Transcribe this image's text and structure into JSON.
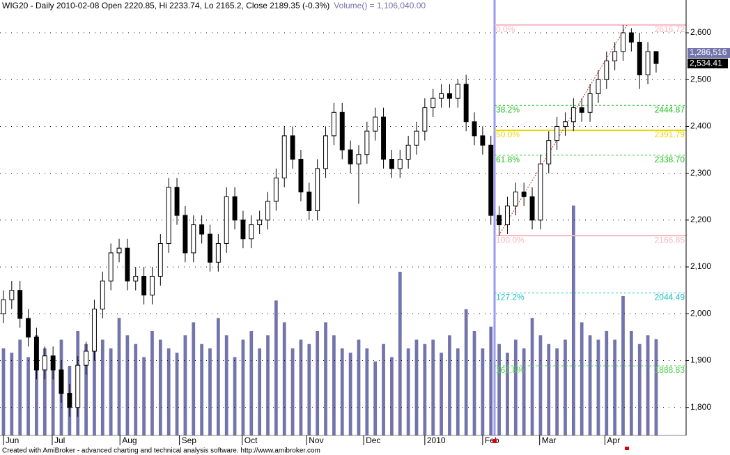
{
  "chart_data": {
    "type": "candlestick",
    "title": "WIG20 - Daily 2010-02-08 Open 2220.85, Hi 2233.74, Lo 2165.2, Close 2189.35 (-0.3%)",
    "volume_title": "Volume() = 1,106,040.00",
    "footer": "Created with AmiBroker - advanced charting and technical analysis software. http://www.amibroker.com",
    "x": [
      0,
      1,
      2,
      3,
      4,
      5,
      6,
      7,
      8,
      9,
      10,
      11,
      12,
      13,
      14,
      15,
      16,
      17,
      18,
      19,
      20,
      21,
      22,
      23,
      24,
      25,
      26,
      27,
      28,
      29,
      30,
      31,
      32,
      33,
      34,
      35,
      36,
      37,
      38,
      39,
      40,
      41,
      42,
      43,
      44,
      45,
      46,
      47,
      48,
      49,
      50,
      51,
      52,
      53,
      54,
      55,
      56,
      57,
      58,
      59,
      60,
      61,
      62,
      63,
      64,
      65,
      66,
      67,
      68,
      69,
      70,
      71,
      72,
      73,
      74,
      75,
      76,
      77,
      78,
      79
    ],
    "open": [
      2000,
      2030,
      2050,
      1990,
      1950,
      1880,
      1910,
      1880,
      1830,
      1800,
      1890,
      1920,
      2010,
      2070,
      2130,
      2140,
      2070,
      2080,
      2040,
      2080,
      2150,
      2270,
      2210,
      2130,
      2190,
      2170,
      2110,
      2150,
      2250,
      2200,
      2160,
      2190,
      2200,
      2240,
      2290,
      2380,
      2330,
      2260,
      2220,
      2310,
      2380,
      2430,
      2350,
      2320,
      2340,
      2390,
      2420,
      2330,
      2310,
      2330,
      2360,
      2390,
      2440,
      2460,
      2470,
      2460,
      2490,
      2410,
      2380,
      2360,
      2210,
      2190,
      2230,
      2260,
      2250,
      2200,
      2320,
      2370,
      2400,
      2410,
      2440,
      2430,
      2470,
      2500,
      2540,
      2560,
      2600,
      2580,
      2510,
      2560
    ],
    "high": [
      2050,
      2070,
      2070,
      2010,
      1970,
      1930,
      1930,
      1900,
      1850,
      1910,
      1940,
      2030,
      2090,
      2150,
      2160,
      2160,
      2100,
      2100,
      2100,
      2170,
      2290,
      2290,
      2230,
      2210,
      2210,
      2190,
      2170,
      2270,
      2270,
      2220,
      2210,
      2220,
      2260,
      2310,
      2400,
      2400,
      2350,
      2280,
      2330,
      2400,
      2450,
      2450,
      2370,
      2360,
      2410,
      2440,
      2440,
      2350,
      2350,
      2380,
      2410,
      2460,
      2480,
      2490,
      2490,
      2500,
      2510,
      2430,
      2400,
      2380,
      2230,
      2250,
      2280,
      2280,
      2270,
      2340,
      2390,
      2420,
      2430,
      2460,
      2460,
      2490,
      2520,
      2560,
      2580,
      2616.72,
      2610,
      2600,
      2580,
      2555
    ],
    "low": [
      1980,
      2010,
      1970,
      1930,
      1860,
      1860,
      1860,
      1810,
      1780,
      1780,
      1870,
      1900,
      1990,
      2050,
      2110,
      2050,
      2050,
      2020,
      2020,
      2060,
      2130,
      2190,
      2110,
      2110,
      2150,
      2090,
      2090,
      2130,
      2180,
      2140,
      2140,
      2170,
      2180,
      2220,
      2270,
      2310,
      2240,
      2200,
      2200,
      2290,
      2360,
      2330,
      2300,
      2235,
      2320,
      2370,
      2310,
      2290,
      2290,
      2310,
      2340,
      2370,
      2420,
      2440,
      2440,
      2440,
      2390,
      2360,
      2340,
      2190,
      2166.85,
      2170,
      2210,
      2230,
      2180,
      2180,
      2300,
      2350,
      2380,
      2390,
      2410,
      2410,
      2450,
      2480,
      2520,
      2540,
      2560,
      2480,
      2490,
      2515
    ],
    "close": [
      2030,
      2050,
      1990,
      1950,
      1880,
      1910,
      1880,
      1830,
      1800,
      1890,
      1920,
      2010,
      2070,
      2130,
      2140,
      2070,
      2080,
      2040,
      2080,
      2150,
      2270,
      2210,
      2130,
      2190,
      2170,
      2110,
      2150,
      2250,
      2200,
      2160,
      2190,
      2200,
      2240,
      2290,
      2380,
      2330,
      2260,
      2220,
      2310,
      2380,
      2430,
      2350,
      2320,
      2340,
      2390,
      2420,
      2330,
      2310,
      2330,
      2360,
      2390,
      2440,
      2460,
      2470,
      2460,
      2490,
      2410,
      2380,
      2360,
      2210,
      2190,
      2230,
      2260,
      2250,
      2200,
      2320,
      2370,
      2400,
      2410,
      2440,
      2430,
      2470,
      2500,
      2540,
      2560,
      2600,
      2580,
      2510,
      2560,
      2534.41
    ],
    "volume": [
      1000000,
      950000,
      1100000,
      900000,
      1150000,
      1000000,
      850000,
      1100000,
      800000,
      1200000,
      1050000,
      1250000,
      1100000,
      1000000,
      1350000,
      1150000,
      1050000,
      900000,
      1200000,
      1100000,
      1000000,
      950000,
      1150000,
      1300000,
      1050000,
      1000000,
      1350000,
      1150000,
      900000,
      1100000,
      1200000,
      1000000,
      1150000,
      1550000,
      1300000,
      1000000,
      1100000,
      1050000,
      1200000,
      1300000,
      1150000,
      1000000,
      950000,
      1100000,
      1000000,
      850000,
      1050000,
      900000,
      1880000,
      1000000,
      1100000,
      1050000,
      1100000,
      950000,
      1150000,
      1000000,
      1450000,
      1200000,
      1000000,
      1250000,
      1050000,
      950000,
      1100000,
      1000000,
      1350000,
      1150000,
      1050000,
      1000000,
      1100000,
      2640000,
      1300000,
      1150000,
      1100000,
      1200000,
      1100000,
      1600000,
      1200000,
      1050000,
      1150000,
      1106040
    ],
    "volume_color": "#7474ac",
    "volume_lim": [
      0,
      5000000
    ],
    "last_price_label": "2,534.41",
    "volume_marker_label": "1,286,516",
    "xlim": [
      -0.42,
      82.63
    ],
    "xticks": [
      {
        "value": 0,
        "label": "Jun"
      },
      {
        "value": 5.9,
        "label": "Jul"
      },
      {
        "value": 14.1,
        "label": "Aug"
      },
      {
        "value": 21.3,
        "label": "Sep"
      },
      {
        "value": 28.9,
        "label": "Oct"
      },
      {
        "value": 36.7,
        "label": "Nov"
      },
      {
        "value": 43.6,
        "label": "Dec"
      },
      {
        "value": 51,
        "label": "2010"
      },
      {
        "value": 58,
        "label": "Feb"
      },
      {
        "value": 64.9,
        "label": "Mar"
      },
      {
        "value": 72.8,
        "label": "Apr"
      }
    ],
    "ylim": [
      1740,
      2670
    ],
    "yticks": [
      {
        "value": 1800,
        "label": "1,800"
      },
      {
        "value": 1900,
        "label": "1,900"
      },
      {
        "value": 2000,
        "label": "2,000"
      },
      {
        "value": 2100,
        "label": "2,100"
      },
      {
        "value": 2200,
        "label": "2,200"
      },
      {
        "value": 2300,
        "label": "2,300"
      },
      {
        "value": 2400,
        "label": "2,400"
      },
      {
        "value": 2500,
        "label": "2,500"
      },
      {
        "value": 2600,
        "label": "2,600"
      }
    ],
    "grid": true,
    "fibonacci": [
      {
        "label": "0.0%",
        "value": 2616.72,
        "value_label": "2616.72",
        "color": "#f4b6c0",
        "dash": false
      },
      {
        "label": "38.2%",
        "value": 2444.87,
        "value_label": "2444.87",
        "color": "#22c022",
        "dash": true
      },
      {
        "label": "50.0%",
        "value": 2391.79,
        "value_label": "2391.79",
        "color": "#e8d800",
        "dash": false
      },
      {
        "label": "61.8%",
        "value": 2338.7,
        "value_label": "2338.70",
        "color": "#22c022",
        "dash": true
      },
      {
        "label": "100.0%",
        "value": 2166.85,
        "value_label": "2166.85",
        "color": "#f4b6c0",
        "dash": false
      },
      {
        "label": "127.2%",
        "value": 2044.49,
        "value_label": "2044.49",
        "color": "#20c0c0",
        "dash": true
      },
      {
        "label": "161.8%",
        "value": 1888.83,
        "value_label": "1888.83",
        "color": "#50d050",
        "dash": true
      }
    ]
  }
}
